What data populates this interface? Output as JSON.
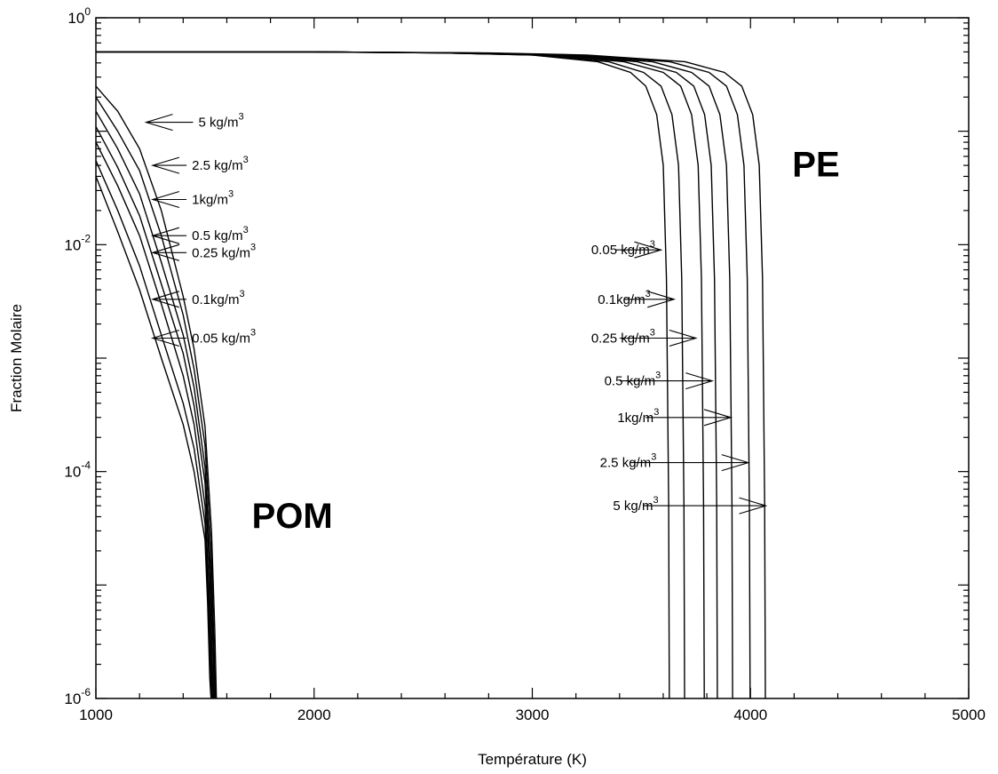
{
  "chart_data": {
    "type": "line",
    "title": "",
    "xlabel": "Température (K)",
    "ylabel": "Fraction Molaire",
    "xlim": [
      1000,
      5000
    ],
    "ylim": [
      1e-06,
      1
    ],
    "yscale": "log",
    "grid": false,
    "x_ticks": [
      {
        "value": 1000,
        "label": "1000"
      },
      {
        "value": 2000,
        "label": "2000"
      },
      {
        "value": 3000,
        "label": "3000"
      },
      {
        "value": 4000,
        "label": "4000"
      },
      {
        "value": 5000,
        "label": "5000"
      }
    ],
    "y_ticks": [
      {
        "exp": 0,
        "base": "10",
        "sup": "0"
      },
      {
        "exp": -2,
        "base": "10",
        "sup": "-2"
      },
      {
        "exp": -4,
        "base": "10",
        "sup": "-4"
      },
      {
        "exp": -6,
        "base": "10",
        "sup": "-6"
      }
    ],
    "groups": [
      {
        "label": "POM",
        "label_pos": [
          1900,
          3.2e-05
        ],
        "series": [
          {
            "name": "5 kg/m3",
            "x": [
              1000,
              1100,
              1200,
              1300,
              1400,
              1450,
              1500,
              1530,
              1545,
              1550,
              1552
            ],
            "y": [
              0.25,
              0.15,
              0.07,
              0.02,
              0.0035,
              0.0012,
              0.00025,
              3e-05,
              4e-06,
              1.5e-06,
              1e-06
            ]
          },
          {
            "name": "2.5 kg/m3",
            "x": [
              1000,
              1100,
              1200,
              1300,
              1400,
              1450,
              1500,
              1528,
              1541,
              1546,
              1548
            ],
            "y": [
              0.2,
              0.1,
              0.045,
              0.012,
              0.0024,
              0.0008,
              0.00017,
              2e-05,
              3e-06,
              1.3e-06,
              1e-06
            ]
          },
          {
            "name": "1kg/m3",
            "x": [
              1000,
              1100,
              1200,
              1300,
              1400,
              1450,
              1500,
              1525,
              1538,
              1542,
              1544
            ],
            "y": [
              0.15,
              0.07,
              0.028,
              0.007,
              0.0016,
              0.00055,
              0.00011,
              1.5e-05,
              2.5e-06,
              1.2e-06,
              1e-06
            ]
          },
          {
            "name": "0.5 kg/m3",
            "x": [
              1000,
              1100,
              1200,
              1300,
              1400,
              1450,
              1500,
              1522,
              1534,
              1538,
              1540
            ],
            "y": [
              0.11,
              0.048,
              0.018,
              0.0045,
              0.0011,
              0.00038,
              8e-05,
              1.2e-05,
              2e-06,
              1.2e-06,
              1e-06
            ]
          },
          {
            "name": "0.25 kg/m3",
            "x": [
              1000,
              1100,
              1200,
              1300,
              1400,
              1450,
              1500,
              1518,
              1530,
              1534,
              1536
            ],
            "y": [
              0.08,
              0.033,
              0.012,
              0.003,
              0.0007,
              0.00026,
              5e-05,
              1e-05,
              1.8e-06,
              1.1e-06,
              1e-06
            ]
          },
          {
            "name": "0.1kg/m3",
            "x": [
              1000,
              1100,
              1200,
              1300,
              1400,
              1450,
              1500,
              1515,
              1526,
              1530,
              1532
            ],
            "y": [
              0.055,
              0.02,
              0.0065,
              0.0016,
              0.0004,
              0.00016,
              3.5e-05,
              8e-06,
              1.6e-06,
              1.1e-06,
              1e-06
            ]
          },
          {
            "name": "0.05 kg/m3",
            "x": [
              1000,
              1100,
              1200,
              1300,
              1400,
              1450,
              1500,
              1512,
              1522,
              1526,
              1528
            ],
            "y": [
              0.04,
              0.013,
              0.004,
              0.001,
              0.00026,
              0.0001,
              2.5e-05,
              7e-06,
              1.5e-06,
              1.1e-06,
              1e-06
            ]
          }
        ]
      },
      {
        "label": "PE",
        "label_pos": [
          4300,
          0.04
        ],
        "series": [
          {
            "name": "0.05 kg/m3",
            "x": [
              1000,
              2000,
              2600,
              3000,
              3300,
              3450,
              3520,
              3570,
              3600,
              3615,
              3625,
              3628
            ],
            "y": [
              0.5,
              0.5,
              0.49,
              0.47,
              0.41,
              0.33,
              0.25,
              0.14,
              0.05,
              0.005,
              5e-05,
              1e-06
            ]
          },
          {
            "name": "0.1kg/m3",
            "x": [
              1000,
              2000,
              2600,
              3000,
              3350,
              3510,
              3590,
              3640,
              3670,
              3685,
              3695,
              3698
            ],
            "y": [
              0.5,
              0.5,
              0.49,
              0.47,
              0.41,
              0.33,
              0.25,
              0.14,
              0.05,
              0.005,
              5e-05,
              1e-06
            ]
          },
          {
            "name": "0.25 kg/m3",
            "x": [
              1000,
              2000,
              2600,
              3050,
              3420,
              3600,
              3680,
              3730,
              3760,
              3775,
              3785,
              3788
            ],
            "y": [
              0.5,
              0.5,
              0.49,
              0.47,
              0.41,
              0.33,
              0.25,
              0.14,
              0.05,
              0.005,
              5e-05,
              1e-06
            ]
          },
          {
            "name": "0.5 kg/m3",
            "x": [
              1000,
              2000,
              2650,
              3100,
              3480,
              3660,
              3740,
              3790,
              3820,
              3835,
              3845,
              3848
            ],
            "y": [
              0.5,
              0.5,
              0.49,
              0.47,
              0.41,
              0.33,
              0.25,
              0.14,
              0.05,
              0.005,
              5e-05,
              1e-06
            ]
          },
          {
            "name": "1kg/m3",
            "x": [
              1000,
              2000,
              2700,
              3150,
              3550,
              3730,
              3810,
              3860,
              3890,
              3905,
              3915,
              3918
            ],
            "y": [
              0.5,
              0.5,
              0.49,
              0.47,
              0.41,
              0.33,
              0.25,
              0.14,
              0.05,
              0.005,
              5e-05,
              1e-06
            ]
          },
          {
            "name": "2.5 kg/m3",
            "x": [
              1000,
              2000,
              2750,
              3200,
              3630,
              3810,
              3890,
              3940,
              3970,
              3985,
              3995,
              3998
            ],
            "y": [
              0.5,
              0.5,
              0.49,
              0.47,
              0.41,
              0.33,
              0.25,
              0.14,
              0.05,
              0.005,
              5e-05,
              1e-06
            ]
          },
          {
            "name": "5 kg/m3",
            "x": [
              1000,
              2000,
              2800,
              3250,
              3700,
              3880,
              3960,
              4010,
              4040,
              4055,
              4065,
              4068
            ],
            "y": [
              0.5,
              0.5,
              0.49,
              0.47,
              0.41,
              0.33,
              0.25,
              0.14,
              0.05,
              0.005,
              5e-05,
              1e-06
            ]
          }
        ]
      }
    ],
    "annotations": [
      {
        "text": "5 kg/m",
        "sup": "3",
        "at": [
          1470,
          0.12
        ],
        "tail": [
          1470,
          0.12
        ],
        "head": [
          1230,
          0.12
        ],
        "side": "left"
      },
      {
        "text": "2.5 kg/m",
        "sup": "3",
        "at": [
          1440,
          0.05
        ],
        "tail": [
          1440,
          0.05
        ],
        "head": [
          1260,
          0.05
        ],
        "side": "left"
      },
      {
        "text": "1kg/m",
        "sup": "3",
        "at": [
          1440,
          0.025
        ],
        "tail": [
          1440,
          0.025
        ],
        "head": [
          1260,
          0.025
        ],
        "side": "left"
      },
      {
        "text": "0.5 kg/m",
        "sup": "3",
        "at": [
          1440,
          0.012
        ],
        "tail": [
          1440,
          0.012
        ],
        "head": [
          1260,
          0.012
        ],
        "side": "left"
      },
      {
        "text": "0.25 kg/m",
        "sup": "3",
        "at": [
          1440,
          0.0085
        ],
        "tail": [
          1440,
          0.0085
        ],
        "head": [
          1260,
          0.0085
        ],
        "side": "left"
      },
      {
        "text": "0.1kg/m",
        "sup": "3",
        "at": [
          1440,
          0.0033
        ],
        "tail": [
          1440,
          0.0033
        ],
        "head": [
          1260,
          0.0033
        ],
        "side": "left"
      },
      {
        "text": "0.05 kg/m",
        "sup": "3",
        "at": [
          1440,
          0.0015
        ],
        "tail": [
          1440,
          0.0015
        ],
        "head": [
          1260,
          0.0015
        ],
        "side": "left"
      },
      {
        "text": "0.05 kg/m",
        "sup": "3",
        "at": [
          3270,
          0.009
        ],
        "tail": [
          3380,
          0.009
        ],
        "head": [
          3590,
          0.009
        ],
        "side": "right"
      },
      {
        "text": "0.1kg/m",
        "sup": "3",
        "at": [
          3300,
          0.0033
        ],
        "tail": [
          3420,
          0.0033
        ],
        "head": [
          3650,
          0.0033
        ],
        "side": "right"
      },
      {
        "text": "0.25 kg/m",
        "sup": "3",
        "at": [
          3270,
          0.0015
        ],
        "tail": [
          3400,
          0.0015
        ],
        "head": [
          3750,
          0.0015
        ],
        "side": "right"
      },
      {
        "text": "0.5 kg/m",
        "sup": "3",
        "at": [
          3330,
          0.00063
        ],
        "tail": [
          3400,
          0.00063
        ],
        "head": [
          3825,
          0.00063
        ],
        "side": "right"
      },
      {
        "text": "1kg/m",
        "sup": "3",
        "at": [
          3390,
          0.0003
        ],
        "tail": [
          3520,
          0.0003
        ],
        "head": [
          3910,
          0.0003
        ],
        "side": "right"
      },
      {
        "text": "2.5 kg/m",
        "sup": "3",
        "at": [
          3310,
          0.00012
        ],
        "tail": [
          3450,
          0.00012
        ],
        "head": [
          3990,
          0.00012
        ],
        "side": "right"
      },
      {
        "text": "5 kg/m",
        "sup": "3",
        "at": [
          3370,
          5e-05
        ],
        "tail": [
          3510,
          5e-05
        ],
        "head": [
          4070,
          5e-05
        ],
        "side": "right"
      }
    ]
  }
}
